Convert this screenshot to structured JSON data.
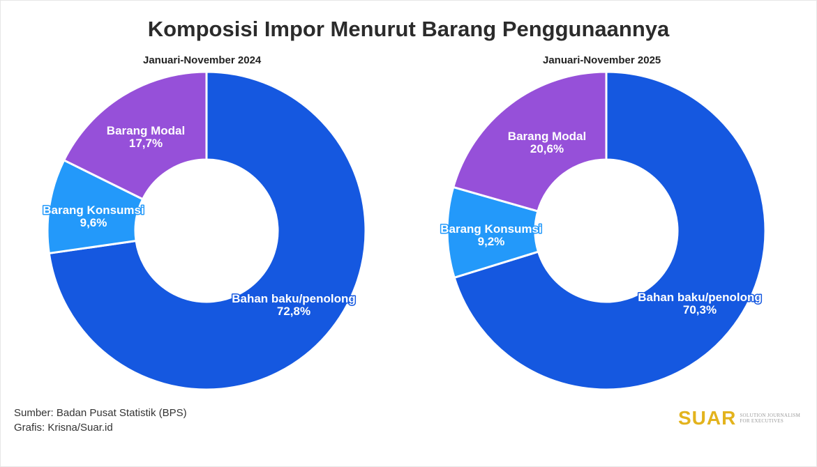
{
  "title": "Komposisi Impor Menurut Barang Penggunaannya",
  "footer": {
    "source": "Sumber: Badan Pusat Statistik (BPS)",
    "credit": "Grafis: Krisna/Suar.id"
  },
  "logo": {
    "word": "SUAR",
    "tagline_1": "Solution Journalism",
    "tagline_2": "for Executives"
  },
  "colors": {
    "bahan_baku": "#1558e0",
    "barang_konsumsi": "#2399fa",
    "barang_modal": "#9650d9"
  },
  "chart_data": [
    {
      "type": "pie",
      "variant": "donut",
      "subtitle": "Januari-November 2024",
      "slices": [
        {
          "label": "Bahan baku/penolong",
          "value": 72.8,
          "display": "72,8%",
          "color": "#1558e0"
        },
        {
          "label": "Barang Konsumsi",
          "value": 9.6,
          "display": "9,6%",
          "color": "#2399fa"
        },
        {
          "label": "Barang Modal",
          "value": 17.7,
          "display": "17,7%",
          "color": "#9650d9"
        }
      ]
    },
    {
      "type": "pie",
      "variant": "donut",
      "subtitle": "Januari-November 2025",
      "slices": [
        {
          "label": "Bahan baku/penolong",
          "value": 70.3,
          "display": "70,3%",
          "color": "#1558e0"
        },
        {
          "label": "Barang Konsumsi",
          "value": 9.2,
          "display": "9,2%",
          "color": "#2399fa"
        },
        {
          "label": "Barang Modal",
          "value": 20.6,
          "display": "20,6%",
          "color": "#9650d9"
        }
      ]
    }
  ]
}
